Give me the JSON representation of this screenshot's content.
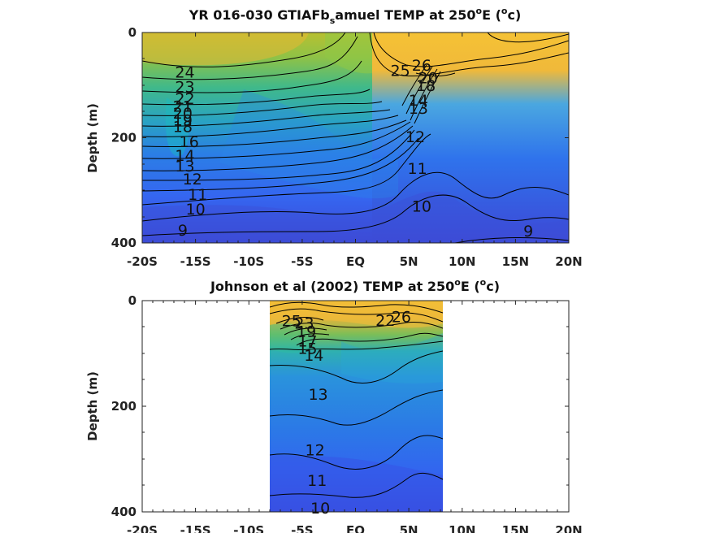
{
  "chart_data": [
    {
      "type": "heatmap",
      "title_main": "YR 016-030 GTIAFb",
      "title_sub": "s",
      "title_mid": "amuel TEMP at 250",
      "title_deg_mark": "o",
      "title_unit_main": "E (",
      "title_unit_deg": "o",
      "title_unit_end": "c)",
      "ylabel": "Depth (m)",
      "x_ticks": [
        "-20S",
        "-15S",
        "-10S",
        "-5S",
        "EQ",
        "5N",
        "10N",
        "15N",
        "20N"
      ],
      "x_tick_values": [
        -20,
        -15,
        -10,
        -5,
        0,
        5,
        10,
        15,
        20
      ],
      "y_ticks": [
        "0",
        "200",
        "400"
      ],
      "y_tick_values": [
        0,
        200,
        400
      ],
      "xlim": [
        -20,
        20
      ],
      "ylim": [
        400,
        0
      ],
      "data_extent": [
        -20,
        20
      ],
      "contour_levels": [
        9,
        10,
        11,
        12,
        13,
        14,
        15,
        16,
        17,
        18,
        19,
        20,
        21,
        22,
        23,
        24,
        25,
        26
      ],
      "contour_labels": [
        {
          "text": "24",
          "lat": -16.0,
          "depth": 75
        },
        {
          "text": "23",
          "lat": -16.0,
          "depth": 103
        },
        {
          "text": "22",
          "lat": -16.0,
          "depth": 125
        },
        {
          "text": "21",
          "lat": -16.2,
          "depth": 140
        },
        {
          "text": "20",
          "lat": -16.2,
          "depth": 153
        },
        {
          "text": "19",
          "lat": -16.2,
          "depth": 166
        },
        {
          "text": "18",
          "lat": -16.2,
          "depth": 178
        },
        {
          "text": "16",
          "lat": -15.6,
          "depth": 207
        },
        {
          "text": "14",
          "lat": -16.0,
          "depth": 233
        },
        {
          "text": "13",
          "lat": -16.0,
          "depth": 253
        },
        {
          "text": "12",
          "lat": -15.3,
          "depth": 278
        },
        {
          "text": "11",
          "lat": -14.8,
          "depth": 307
        },
        {
          "text": "10",
          "lat": -15.0,
          "depth": 335
        },
        {
          "text": "9",
          "lat": -16.2,
          "depth": 375
        },
        {
          "text": "25",
          "lat": 4.2,
          "depth": 72
        },
        {
          "text": "26",
          "lat": 6.2,
          "depth": 62
        },
        {
          "text": "20",
          "lat": 6.8,
          "depth": 86
        },
        {
          "text": "18",
          "lat": 6.6,
          "depth": 100
        },
        {
          "text": "14",
          "lat": 5.9,
          "depth": 128
        },
        {
          "text": "13",
          "lat": 5.9,
          "depth": 144
        },
        {
          "text": "12",
          "lat": 5.6,
          "depth": 198
        },
        {
          "text": "11",
          "lat": 5.8,
          "depth": 258
        },
        {
          "text": "10",
          "lat": 6.2,
          "depth": 330
        },
        {
          "text": "9",
          "lat": 16.2,
          "depth": 377
        }
      ]
    },
    {
      "type": "heatmap",
      "title_main": "Johnson et al (2002) TEMP at 250",
      "title_deg_mark": "o",
      "title_unit_main": "E (",
      "title_unit_deg": "o",
      "title_unit_end": "c)",
      "ylabel": "Depth (m)",
      "x_ticks": [
        "-20S",
        "-15S",
        "-10S",
        "-5S",
        "EQ",
        "5N",
        "10N",
        "15N",
        "20N"
      ],
      "x_tick_values": [
        -20,
        -15,
        -10,
        -5,
        0,
        5,
        10,
        15,
        20
      ],
      "y_ticks": [
        "0",
        "200",
        "400"
      ],
      "y_tick_values": [
        0,
        200,
        400
      ],
      "xlim": [
        -20,
        20
      ],
      "ylim": [
        400,
        0
      ],
      "data_extent": [
        -8,
        8.3
      ],
      "contour_levels": [
        10,
        11,
        12,
        13,
        14,
        15,
        16,
        17,
        18,
        19,
        20,
        21,
        22,
        23,
        24,
        25,
        26
      ],
      "contour_labels": [
        {
          "text": "25",
          "lat": -6.0,
          "depth": 38
        },
        {
          "text": "23",
          "lat": -4.8,
          "depth": 42
        },
        {
          "text": "19",
          "lat": -4.6,
          "depth": 58
        },
        {
          "text": "17",
          "lat": -4.5,
          "depth": 76
        },
        {
          "text": "15",
          "lat": -4.5,
          "depth": 90
        },
        {
          "text": "14",
          "lat": -3.9,
          "depth": 103
        },
        {
          "text": "22",
          "lat": 2.8,
          "depth": 37
        },
        {
          "text": "26",
          "lat": 4.3,
          "depth": 30
        },
        {
          "text": "13",
          "lat": -3.5,
          "depth": 177
        },
        {
          "text": "12",
          "lat": -3.8,
          "depth": 282
        },
        {
          "text": "11",
          "lat": -3.6,
          "depth": 340
        },
        {
          "text": "10",
          "lat": -3.3,
          "depth": 392
        }
      ]
    }
  ]
}
